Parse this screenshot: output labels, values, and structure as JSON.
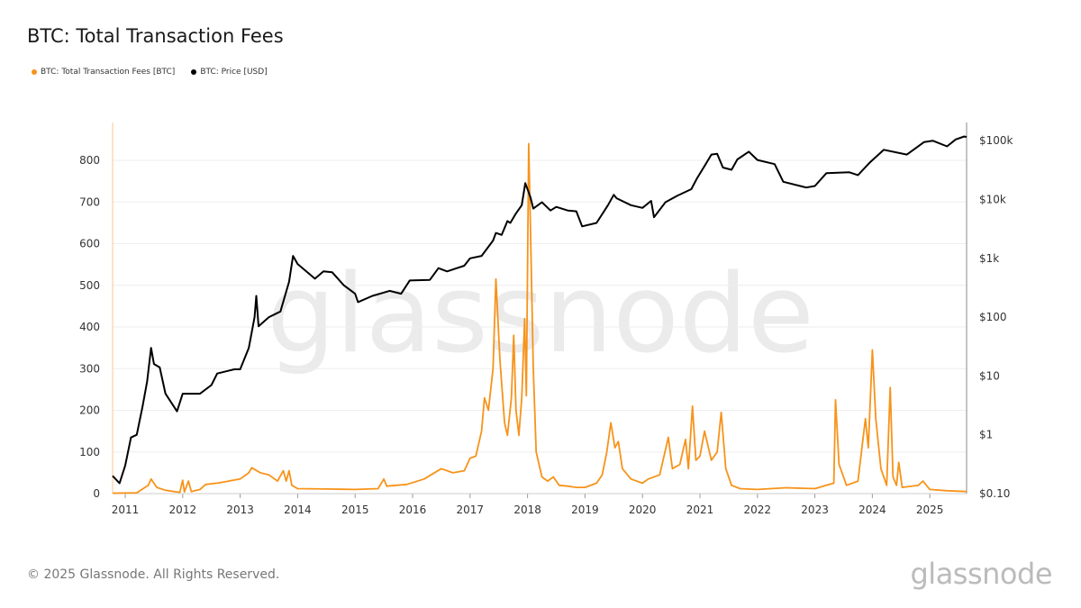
{
  "title": "BTC: Total Transaction Fees",
  "footer": "© 2025 Glassnode. All Rights Reserved.",
  "logo_text": "glassnode",
  "watermark": "glassnode",
  "chart_data": {
    "type": "line",
    "title": "BTC: Total Transaction Fees",
    "legend_position": "top-left",
    "grid": true,
    "x_ticks": [
      "2011",
      "2012",
      "2013",
      "2014",
      "2015",
      "2016",
      "2017",
      "2018",
      "2019",
      "2020",
      "2021",
      "2022",
      "2023",
      "2024",
      "2025"
    ],
    "xlim": [
      2010.78,
      2025.64
    ],
    "y_left": {
      "ylim": [
        0,
        880
      ],
      "ticks": [
        0,
        100,
        200,
        300,
        400,
        500,
        600,
        700,
        800
      ],
      "tick_labels": [
        "0",
        "100",
        "200",
        "300",
        "400",
        "500",
        "600",
        "700",
        "800"
      ]
    },
    "y_right": {
      "scale": "log",
      "ylim": [
        0.1,
        130000
      ],
      "ticks": [
        0.1,
        1,
        10,
        100,
        1000,
        10000,
        100000
      ],
      "tick_labels": [
        "$0.10",
        "$1",
        "$10",
        "$100",
        "$1k",
        "$10k",
        "$100k"
      ]
    },
    "series": [
      {
        "name": "BTC: Total Transaction Fees [BTC]",
        "axis": "left",
        "color": "#f7931a",
        "points": [
          [
            2010.78,
            1
          ],
          [
            2011.2,
            2
          ],
          [
            2011.4,
            20
          ],
          [
            2011.45,
            35
          ],
          [
            2011.55,
            15
          ],
          [
            2011.7,
            8
          ],
          [
            2011.95,
            3
          ],
          [
            2012.0,
            32
          ],
          [
            2012.03,
            4
          ],
          [
            2012.1,
            30
          ],
          [
            2012.15,
            5
          ],
          [
            2012.3,
            10
          ],
          [
            2012.4,
            22
          ],
          [
            2012.6,
            25
          ],
          [
            2012.8,
            30
          ],
          [
            2013.0,
            35
          ],
          [
            2013.15,
            50
          ],
          [
            2013.2,
            62
          ],
          [
            2013.35,
            50
          ],
          [
            2013.5,
            45
          ],
          [
            2013.65,
            30
          ],
          [
            2013.75,
            55
          ],
          [
            2013.8,
            30
          ],
          [
            2013.85,
            55
          ],
          [
            2013.9,
            20
          ],
          [
            2014.0,
            12
          ],
          [
            2014.5,
            11
          ],
          [
            2015.0,
            10
          ],
          [
            2015.4,
            12
          ],
          [
            2015.5,
            35
          ],
          [
            2015.55,
            18
          ],
          [
            2015.9,
            22
          ],
          [
            2016.2,
            35
          ],
          [
            2016.5,
            60
          ],
          [
            2016.7,
            50
          ],
          [
            2016.9,
            55
          ],
          [
            2017.0,
            85
          ],
          [
            2017.1,
            90
          ],
          [
            2017.2,
            150
          ],
          [
            2017.25,
            230
          ],
          [
            2017.32,
            200
          ],
          [
            2017.4,
            300
          ],
          [
            2017.45,
            515
          ],
          [
            2017.52,
            320
          ],
          [
            2017.6,
            170
          ],
          [
            2017.65,
            140
          ],
          [
            2017.72,
            230
          ],
          [
            2017.76,
            380
          ],
          [
            2017.8,
            200
          ],
          [
            2017.85,
            140
          ],
          [
            2017.9,
            230
          ],
          [
            2017.95,
            420
          ],
          [
            2017.98,
            235
          ],
          [
            2018.02,
            840
          ],
          [
            2018.06,
            580
          ],
          [
            2018.1,
            300
          ],
          [
            2018.15,
            100
          ],
          [
            2018.25,
            40
          ],
          [
            2018.35,
            30
          ],
          [
            2018.45,
            40
          ],
          [
            2018.55,
            20
          ],
          [
            2018.7,
            18
          ],
          [
            2018.85,
            15
          ],
          [
            2019.0,
            15
          ],
          [
            2019.2,
            25
          ],
          [
            2019.3,
            45
          ],
          [
            2019.38,
            100
          ],
          [
            2019.45,
            170
          ],
          [
            2019.52,
            110
          ],
          [
            2019.58,
            125
          ],
          [
            2019.65,
            60
          ],
          [
            2019.8,
            35
          ],
          [
            2020.0,
            25
          ],
          [
            2020.1,
            35
          ],
          [
            2020.3,
            45
          ],
          [
            2020.45,
            135
          ],
          [
            2020.52,
            60
          ],
          [
            2020.65,
            70
          ],
          [
            2020.75,
            130
          ],
          [
            2020.8,
            60
          ],
          [
            2020.87,
            210
          ],
          [
            2020.93,
            80
          ],
          [
            2021.0,
            90
          ],
          [
            2021.08,
            150
          ],
          [
            2021.2,
            80
          ],
          [
            2021.3,
            100
          ],
          [
            2021.37,
            195
          ],
          [
            2021.45,
            60
          ],
          [
            2021.55,
            20
          ],
          [
            2021.7,
            12
          ],
          [
            2022.0,
            10
          ],
          [
            2022.5,
            14
          ],
          [
            2023.0,
            12
          ],
          [
            2023.2,
            20
          ],
          [
            2023.33,
            25
          ],
          [
            2023.36,
            225
          ],
          [
            2023.42,
            70
          ],
          [
            2023.55,
            20
          ],
          [
            2023.75,
            30
          ],
          [
            2023.88,
            180
          ],
          [
            2023.93,
            110
          ],
          [
            2024.0,
            345
          ],
          [
            2024.06,
            180
          ],
          [
            2024.15,
            60
          ],
          [
            2024.25,
            20
          ],
          [
            2024.31,
            255
          ],
          [
            2024.36,
            40
          ],
          [
            2024.42,
            20
          ],
          [
            2024.46,
            75
          ],
          [
            2024.52,
            15
          ],
          [
            2024.8,
            20
          ],
          [
            2024.88,
            30
          ],
          [
            2025.0,
            10
          ],
          [
            2025.3,
            7
          ],
          [
            2025.64,
            5
          ]
        ]
      },
      {
        "name": "BTC: Price [USD]",
        "axis": "right",
        "color": "#000000",
        "points": [
          [
            2010.78,
            0.2
          ],
          [
            2010.9,
            0.15
          ],
          [
            2011.0,
            0.3
          ],
          [
            2011.1,
            0.9
          ],
          [
            2011.2,
            1.0
          ],
          [
            2011.3,
            3
          ],
          [
            2011.38,
            8
          ],
          [
            2011.45,
            30
          ],
          [
            2011.5,
            16
          ],
          [
            2011.6,
            14
          ],
          [
            2011.7,
            5
          ],
          [
            2011.9,
            2.5
          ],
          [
            2012.0,
            5
          ],
          [
            2012.3,
            5
          ],
          [
            2012.5,
            7
          ],
          [
            2012.6,
            11
          ],
          [
            2012.9,
            13
          ],
          [
            2013.0,
            13
          ],
          [
            2013.15,
            30
          ],
          [
            2013.25,
            100
          ],
          [
            2013.28,
            230
          ],
          [
            2013.32,
            70
          ],
          [
            2013.5,
            100
          ],
          [
            2013.7,
            125
          ],
          [
            2013.85,
            400
          ],
          [
            2013.92,
            1100
          ],
          [
            2014.0,
            800
          ],
          [
            2014.15,
            600
          ],
          [
            2014.3,
            450
          ],
          [
            2014.45,
            600
          ],
          [
            2014.6,
            580
          ],
          [
            2014.8,
            350
          ],
          [
            2015.0,
            250
          ],
          [
            2015.05,
            180
          ],
          [
            2015.3,
            230
          ],
          [
            2015.6,
            280
          ],
          [
            2015.8,
            250
          ],
          [
            2015.95,
            420
          ],
          [
            2016.3,
            430
          ],
          [
            2016.45,
            680
          ],
          [
            2016.6,
            600
          ],
          [
            2016.9,
            750
          ],
          [
            2017.0,
            1000
          ],
          [
            2017.2,
            1100
          ],
          [
            2017.4,
            2000
          ],
          [
            2017.45,
            2700
          ],
          [
            2017.55,
            2500
          ],
          [
            2017.65,
            4300
          ],
          [
            2017.7,
            4000
          ],
          [
            2017.8,
            5800
          ],
          [
            2017.9,
            8000
          ],
          [
            2017.96,
            19000
          ],
          [
            2018.05,
            11000
          ],
          [
            2018.1,
            7000
          ],
          [
            2018.25,
            9000
          ],
          [
            2018.4,
            6500
          ],
          [
            2018.5,
            7500
          ],
          [
            2018.7,
            6500
          ],
          [
            2018.85,
            6300
          ],
          [
            2018.95,
            3500
          ],
          [
            2019.2,
            4000
          ],
          [
            2019.4,
            8000
          ],
          [
            2019.5,
            12000
          ],
          [
            2019.55,
            10500
          ],
          [
            2019.8,
            8000
          ],
          [
            2020.0,
            7200
          ],
          [
            2020.15,
            9500
          ],
          [
            2020.2,
            5000
          ],
          [
            2020.4,
            9000
          ],
          [
            2020.6,
            11500
          ],
          [
            2020.85,
            15000
          ],
          [
            2020.95,
            23000
          ],
          [
            2021.1,
            40000
          ],
          [
            2021.2,
            58000
          ],
          [
            2021.3,
            60000
          ],
          [
            2021.4,
            35000
          ],
          [
            2021.55,
            32000
          ],
          [
            2021.65,
            48000
          ],
          [
            2021.85,
            65000
          ],
          [
            2022.0,
            47000
          ],
          [
            2022.3,
            40000
          ],
          [
            2022.45,
            20000
          ],
          [
            2022.85,
            16000
          ],
          [
            2023.0,
            17000
          ],
          [
            2023.2,
            28000
          ],
          [
            2023.6,
            29000
          ],
          [
            2023.75,
            26000
          ],
          [
            2023.95,
            42000
          ],
          [
            2024.2,
            70000
          ],
          [
            2024.6,
            58000
          ],
          [
            2024.9,
            95000
          ],
          [
            2025.05,
            100000
          ],
          [
            2025.3,
            80000
          ],
          [
            2025.45,
            105000
          ],
          [
            2025.6,
            118000
          ],
          [
            2025.64,
            115000
          ]
        ]
      }
    ]
  }
}
